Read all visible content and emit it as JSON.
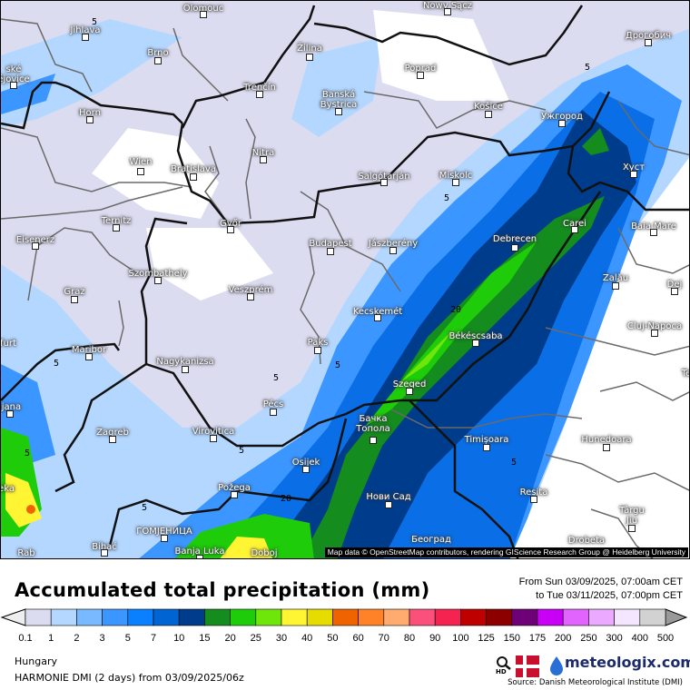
{
  "map": {
    "region": "Hungary",
    "attribution": "Map data © OpenStreetMap contributors, rendering GIScience Research Group @ Heidelberg University",
    "cities": [
      "Olomouc",
      "Jihlava",
      "Brno",
      "ské\nějovice",
      "Žilina",
      "Trenčín",
      "Banská\nBystrica",
      "Horn",
      "Wien",
      "Bratislava",
      "Nitra",
      "Ternitz",
      "Győr",
      "Eisenerz",
      "Budapest",
      "Szombathely",
      "Graz",
      "Veszprém",
      "Maribor",
      "Nagykanizsa",
      "furt",
      "ljana",
      "Pécs",
      "Zagreb",
      "Virovitica",
      "Osijek",
      "eka",
      "Požega",
      "ГОМЈЕНИЦА",
      "Bihać",
      "Rab",
      "Banja Luka",
      "Doboj",
      "Nowy Sącz",
      "Дрогобич",
      "Poprad",
      "Košice",
      "Ужгород",
      "Хуст",
      "Salgótarján",
      "Miskolc",
      "Carei",
      "Baia Mare",
      "Jászberény",
      "Debrecen",
      "Zalău",
      "Dej",
      "Kecskemét",
      "Cluj-Napoca",
      "Békéscsaba",
      "Szeged",
      "Бачка\nТопола",
      "Hunedoara",
      "Timișoara",
      "Reșita",
      "Нови Сад",
      "Târgu\nJiu",
      "Београд",
      "Drobeta",
      "Paks",
      "Te"
    ],
    "contour_labels": [
      "5",
      "5",
      "5",
      "5",
      "5",
      "5",
      "5",
      "5",
      "5",
      "20",
      "20",
      "5"
    ]
  },
  "header": {
    "title": "Accumulated total precipitation (mm)",
    "from": "From Sun 03/09/2025, 07:00am CET",
    "to": "to Tue 03/11/2025, 07:00pm CET"
  },
  "legend": {
    "unit": "mm",
    "labels": [
      "0.1",
      "1",
      "2",
      "3",
      "5",
      "7",
      "10",
      "15",
      "20",
      "25",
      "30",
      "40",
      "50",
      "60",
      "70",
      "80",
      "90",
      "100",
      "125",
      "150",
      "175",
      "200",
      "250",
      "300",
      "400",
      "500"
    ],
    "colors": [
      "#dcdcf0",
      "#b4d7ff",
      "#78b9ff",
      "#3c96ff",
      "#0a80ff",
      "#0064d2",
      "#003c8c",
      "#148c1e",
      "#1ecc0a",
      "#6ee60a",
      "#fff532",
      "#e6dc00",
      "#f06400",
      "#ff8228",
      "#ffaa6e",
      "#fa507a",
      "#f5234f",
      "#be0000",
      "#8c0000",
      "#6e0078",
      "#c800f5",
      "#e164ff",
      "#ebaaff",
      "#f5e6ff",
      "#d2d2d2"
    ],
    "under_color": "#eeeeee",
    "over_color": "#999999"
  },
  "footer": {
    "region": "Hungary",
    "model": "HARMONIE DMI (2 days) from  03/09/2025/06z",
    "brand": "meteologix.com",
    "hd_label": "HD",
    "source": "Source: Danish Meteorological Institute (DMI)"
  }
}
